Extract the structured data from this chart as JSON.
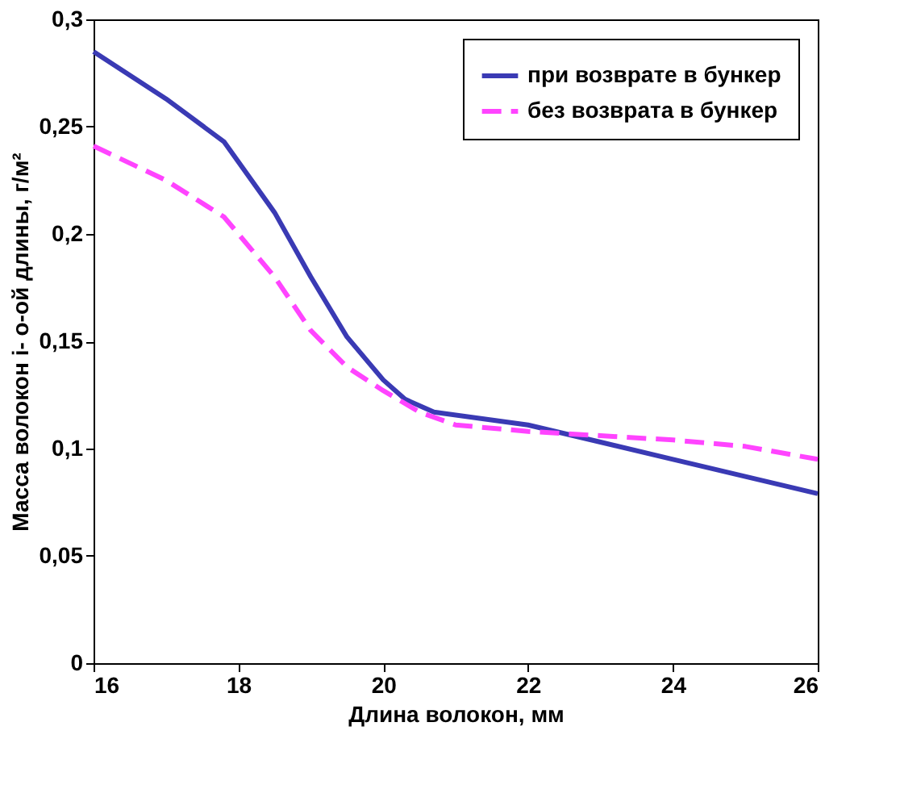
{
  "chart_data": {
    "type": "line",
    "xlabel": "Длина волокон, мм",
    "ylabel": "Масса волокон i- о-ой длины, г/м²",
    "xlim": [
      16,
      26
    ],
    "xticks": [
      16,
      18,
      20,
      22,
      24,
      26
    ],
    "ylim": [
      0,
      0.3
    ],
    "yticks": [
      {
        "value": 0,
        "label": "0"
      },
      {
        "value": 0.05,
        "label": "0,05"
      },
      {
        "value": 0.1,
        "label": "0,1"
      },
      {
        "value": 0.15,
        "label": "0,15"
      },
      {
        "value": 0.2,
        "label": "0,2"
      },
      {
        "value": 0.25,
        "label": "0,25"
      },
      {
        "value": 0.3,
        "label": "0,3"
      }
    ],
    "grid": false,
    "legend": "top right",
    "marker": "none",
    "series": [
      {
        "name": "при возврате в бункер",
        "color": "#3a3ab4",
        "line_style": "solid",
        "x": [
          16,
          17,
          17.8,
          18.5,
          19,
          19.5,
          20,
          20.3,
          20.7,
          22,
          23,
          24,
          25,
          26
        ],
        "values": [
          0.285,
          0.263,
          0.243,
          0.21,
          0.18,
          0.152,
          0.132,
          0.123,
          0.117,
          0.111,
          0.103,
          0.095,
          0.087,
          0.079
        ]
      },
      {
        "name": "без возврата в бункер",
        "color": "#ff44ff",
        "line_style": "dashed",
        "x": [
          16,
          17,
          17.8,
          18.5,
          19,
          19.5,
          20,
          20.5,
          21,
          22,
          23,
          24,
          25,
          26
        ],
        "values": [
          0.241,
          0.225,
          0.208,
          0.18,
          0.155,
          0.138,
          0.127,
          0.117,
          0.111,
          0.108,
          0.106,
          0.104,
          0.101,
          0.095
        ]
      }
    ]
  }
}
